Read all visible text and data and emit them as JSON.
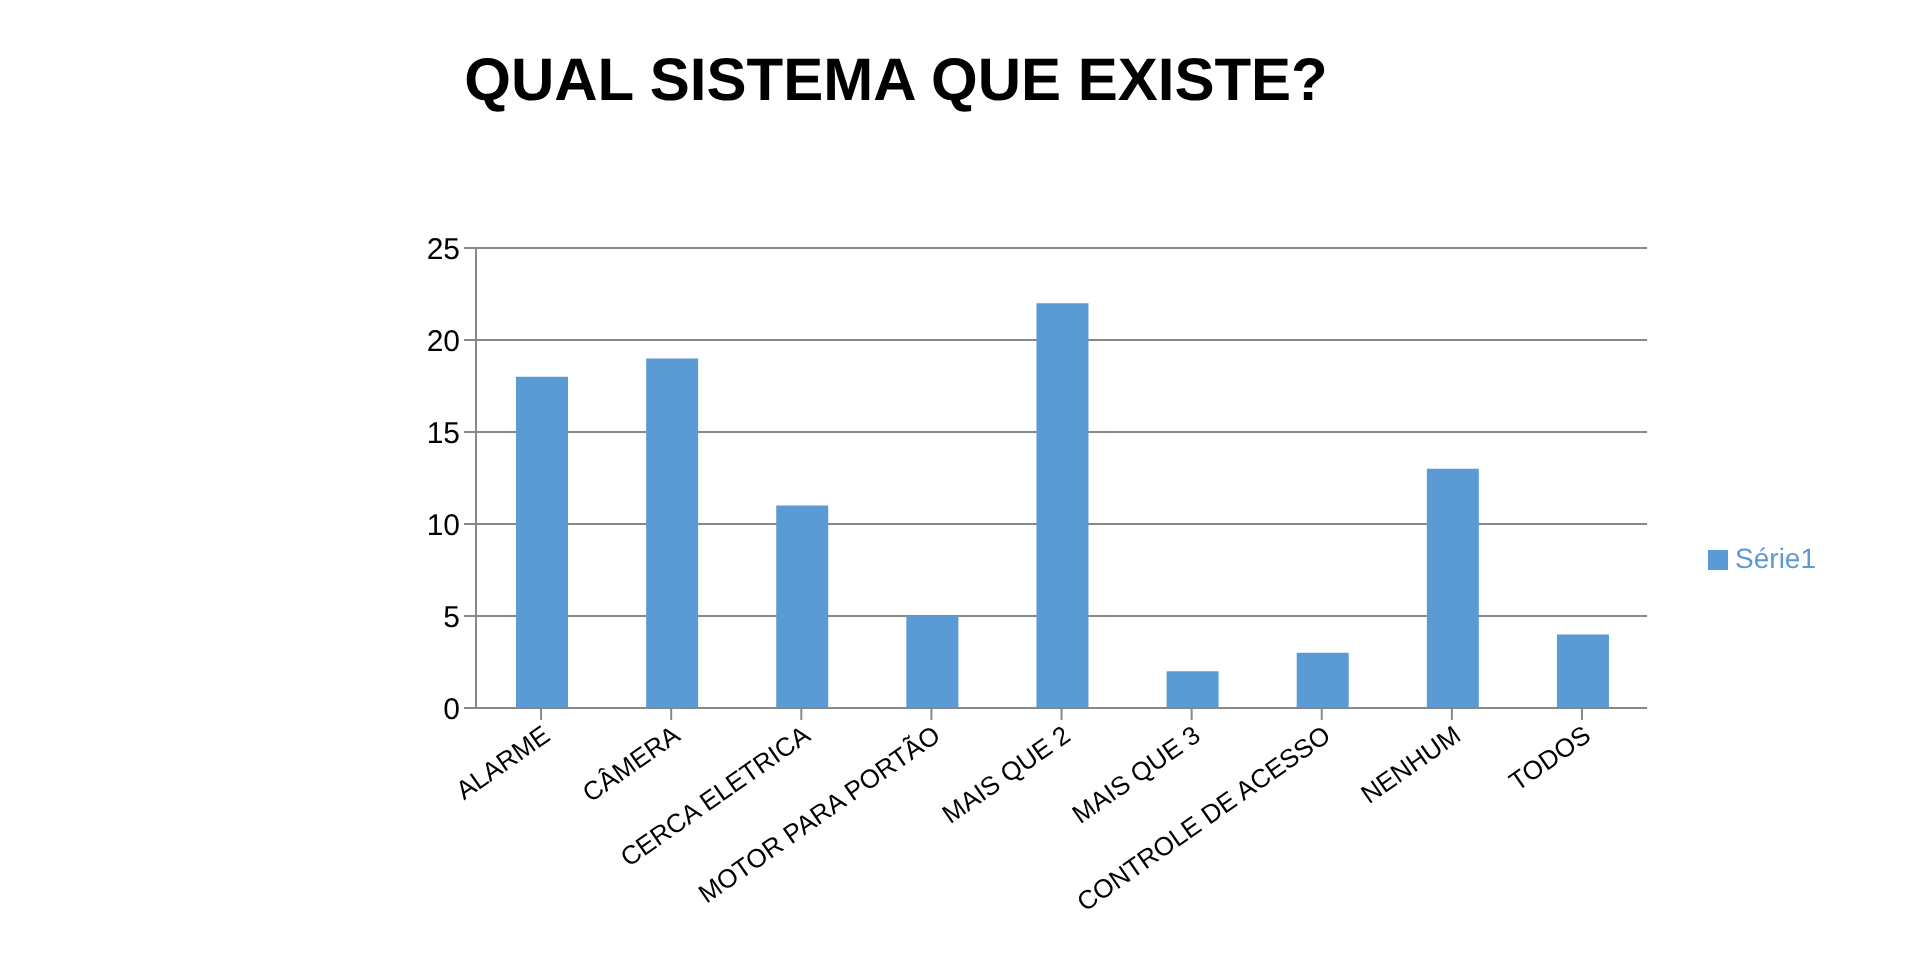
{
  "chart_data": {
    "type": "bar",
    "title": "QUAL SISTEMA QUE EXISTE?",
    "categories": [
      "ALARME",
      "CÂMERA",
      "CERCA ELETRICA",
      "MOTOR PARA PORTÃO",
      "MAIS QUE 2",
      "MAIS QUE 3",
      "CONTROLE DE ACESSO",
      "NENHUM",
      "TODOS"
    ],
    "series": [
      {
        "name": "Série1",
        "color": "#5b9bd5",
        "values": [
          18,
          19,
          11,
          5,
          22,
          2,
          3,
          13,
          4
        ]
      }
    ],
    "ylim": [
      0,
      25
    ],
    "yticks": [
      0,
      5,
      10,
      15,
      20,
      25
    ],
    "grid": "y",
    "legend": "right"
  }
}
